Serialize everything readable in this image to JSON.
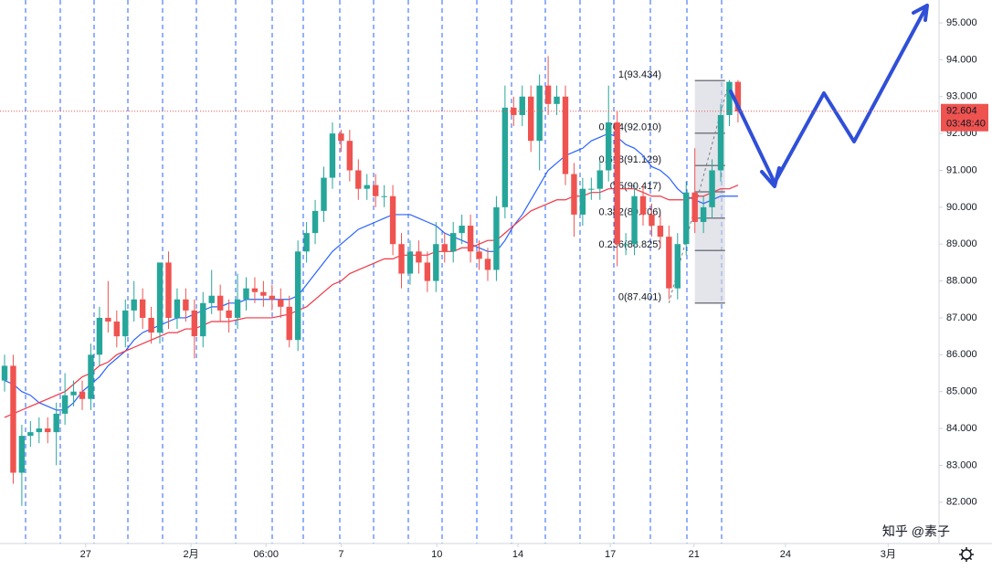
{
  "chart_data": {
    "type": "candlestick",
    "colors": {
      "up": "#26a69a",
      "down": "#ef5350",
      "ma_fast": "#2962ff",
      "ma_slow": "#f23645"
    },
    "open": [
      85.3,
      85.7,
      82.8,
      83.8,
      83.9,
      84.0,
      83.9,
      84.4,
      84.9,
      85.0,
      84.8,
      86.0,
      87.0,
      86.9,
      86.5,
      87.2,
      87.5,
      87.0,
      86.6,
      88.5,
      87.0,
      87.5,
      87.2,
      86.5,
      87.4,
      87.6,
      87.2,
      87.0,
      87.5,
      87.8,
      87.7,
      87.6,
      87.5,
      87.3,
      86.4,
      88.8,
      89.3,
      89.9,
      90.8,
      92.0,
      91.8,
      91.0,
      90.5,
      90.6,
      90.3,
      90.3,
      89.0,
      88.2,
      88.8,
      88.5,
      88.0,
      89.0,
      88.8,
      89.3,
      89.5,
      88.8,
      88.6,
      88.3,
      90.0,
      92.7,
      92.5,
      93.0,
      91.8,
      93.3,
      92.8,
      93.0,
      90.9,
      89.8,
      90.5,
      90.5,
      91.0,
      92.3,
      89.0,
      89.0,
      90.3,
      89.8,
      89.5,
      89.2,
      87.8,
      89.0,
      90.4,
      89.6,
      90.0,
      91.0,
      92.5,
      93.4
    ],
    "high": [
      86.0,
      86.0,
      84.1,
      84.2,
      84.3,
      84.3,
      84.7,
      85.5,
      85.3,
      85.3,
      86.3,
      87.3,
      88.0,
      87.2,
      87.5,
      88.0,
      87.8,
      87.3,
      88.5,
      88.8,
      87.8,
      87.8,
      87.5,
      87.7,
      88.3,
      87.9,
      87.5,
      88.2,
      88.1,
      88.1,
      88.0,
      87.9,
      87.8,
      87.6,
      89.1,
      89.6,
      90.2,
      91.1,
      92.3,
      92.1,
      92.1,
      91.3,
      90.9,
      90.9,
      90.6,
      90.6,
      89.3,
      89.1,
      89.1,
      88.8,
      89.6,
      89.3,
      89.6,
      89.8,
      89.8,
      89.1,
      88.9,
      90.3,
      93.3,
      93.0,
      93.3,
      93.3,
      93.6,
      94.1,
      93.3,
      93.3,
      91.2,
      90.8,
      90.8,
      91.3,
      93.3,
      92.6,
      89.3,
      90.6,
      90.6,
      90.1,
      89.8,
      89.5,
      89.3,
      90.7,
      91.6,
      90.3,
      91.3,
      92.8,
      93.45,
      93.45
    ],
    "low": [
      85.0,
      82.5,
      81.9,
      83.5,
      83.6,
      83.6,
      83.0,
      84.1,
      84.6,
      84.5,
      84.5,
      85.7,
      86.6,
      86.2,
      86.2,
      86.9,
      86.7,
      86.3,
      86.3,
      86.7,
      86.7,
      86.9,
      85.9,
      86.2,
      87.1,
      86.9,
      86.6,
      86.7,
      87.2,
      87.4,
      87.3,
      87.2,
      87.0,
      86.2,
      86.1,
      88.5,
      89.0,
      89.6,
      90.5,
      91.5,
      90.7,
      90.2,
      90.2,
      90.0,
      90.0,
      88.7,
      87.8,
      87.9,
      88.2,
      87.7,
      87.7,
      88.5,
      88.5,
      89.0,
      88.5,
      88.3,
      88.0,
      88.0,
      89.7,
      92.2,
      92.2,
      91.5,
      91.0,
      92.5,
      92.5,
      90.6,
      89.2,
      89.5,
      90.2,
      90.2,
      90.7,
      88.4,
      88.7,
      88.7,
      89.5,
      89.2,
      88.9,
      87.5,
      87.5,
      88.7,
      89.3,
      89.3,
      89.7,
      90.7,
      92.2,
      92.3
    ],
    "close": [
      85.7,
      82.8,
      83.8,
      83.9,
      84.0,
      83.9,
      84.4,
      84.9,
      85.0,
      84.8,
      86.0,
      87.0,
      86.9,
      86.5,
      87.2,
      87.5,
      87.0,
      86.6,
      88.5,
      87.0,
      87.5,
      87.2,
      86.5,
      87.4,
      87.6,
      87.2,
      87.0,
      87.5,
      87.8,
      87.7,
      87.6,
      87.5,
      87.3,
      86.4,
      88.8,
      89.3,
      89.9,
      90.8,
      92.0,
      91.8,
      91.0,
      90.5,
      90.6,
      90.3,
      90.3,
      89.0,
      88.2,
      88.8,
      88.5,
      88.0,
      89.0,
      88.8,
      89.3,
      89.5,
      88.8,
      88.6,
      88.3,
      90.0,
      92.7,
      92.5,
      93.0,
      91.8,
      93.3,
      92.8,
      93.0,
      90.9,
      89.8,
      90.5,
      90.5,
      91.0,
      92.3,
      89.0,
      89.0,
      90.3,
      89.8,
      89.5,
      89.2,
      87.8,
      89.0,
      90.4,
      89.6,
      90.0,
      91.0,
      92.5,
      93.4,
      92.6
    ],
    "ma_fast": [
      85.3,
      85.2,
      85.0,
      84.9,
      84.7,
      84.6,
      84.5,
      84.5,
      84.7,
      85.0,
      85.2,
      85.4,
      85.7,
      85.9,
      86.1,
      86.4,
      86.6,
      86.7,
      86.8,
      86.9,
      87.0,
      87.0,
      87.1,
      87.2,
      87.3,
      87.3,
      87.4,
      87.4,
      87.5,
      87.5,
      87.5,
      87.5,
      87.5,
      87.5,
      87.6,
      87.9,
      88.2,
      88.5,
      88.8,
      89.0,
      89.2,
      89.4,
      89.5,
      89.6,
      89.7,
      89.8,
      89.8,
      89.8,
      89.7,
      89.6,
      89.5,
      89.3,
      89.2,
      89.1,
      89.0,
      88.9,
      88.8,
      88.8,
      89.1,
      89.5,
      89.8,
      90.2,
      90.6,
      91.0,
      91.2,
      91.4,
      91.5,
      91.6,
      91.8,
      91.9,
      92.0,
      91.9,
      91.7,
      91.6,
      91.4,
      91.1,
      91.0,
      90.8,
      90.5,
      90.3,
      90.2,
      90.1,
      90.2,
      90.3,
      90.3,
      90.3
    ],
    "ma_slow": [
      84.3,
      84.4,
      84.5,
      84.6,
      84.7,
      84.8,
      84.9,
      85.0,
      85.2,
      85.4,
      85.5,
      85.7,
      85.8,
      86.0,
      86.1,
      86.2,
      86.3,
      86.4,
      86.5,
      86.6,
      86.6,
      86.7,
      86.7,
      86.8,
      86.9,
      86.9,
      86.9,
      86.95,
      87.0,
      87.0,
      87.0,
      87.0,
      87.05,
      87.1,
      87.2,
      87.3,
      87.5,
      87.7,
      87.9,
      88.0,
      88.2,
      88.3,
      88.4,
      88.5,
      88.6,
      88.6,
      88.7,
      88.7,
      88.7,
      88.7,
      88.8,
      88.8,
      88.8,
      88.9,
      88.9,
      89.0,
      89.1,
      89.1,
      89.3,
      89.5,
      89.7,
      89.9,
      90.0,
      90.1,
      90.2,
      90.2,
      90.3,
      90.3,
      90.4,
      90.4,
      90.5,
      90.5,
      90.5,
      90.5,
      90.4,
      90.3,
      90.3,
      90.2,
      90.2,
      90.2,
      90.3,
      90.3,
      90.4,
      90.5,
      90.5,
      90.6
    ],
    "xlim": [
      -0.53,
      108.3
    ],
    "xticks": [
      {
        "value": 9.4,
        "label": "27"
      },
      {
        "value": 21.6,
        "label": "2月"
      },
      {
        "value": 30.3,
        "label": "06:00"
      },
      {
        "value": 39.0,
        "label": "7"
      },
      {
        "value": 50.1,
        "label": "10"
      },
      {
        "value": 59.5,
        "label": "14"
      },
      {
        "value": 70.2,
        "label": "17"
      },
      {
        "value": 79.9,
        "label": "21"
      },
      {
        "value": 90.5,
        "label": "24"
      },
      {
        "value": 102.4,
        "label": "3月"
      }
    ],
    "ylim": [
      80.88,
      95.62
    ],
    "yticks": [
      {
        "value": 82,
        "label": "82.000"
      },
      {
        "value": 83,
        "label": "83.000"
      },
      {
        "value": 84,
        "label": "84.000"
      },
      {
        "value": 85,
        "label": "85.000"
      },
      {
        "value": 86,
        "label": "86.000"
      },
      {
        "value": 87,
        "label": "87.000"
      },
      {
        "value": 88,
        "label": "88.000"
      },
      {
        "value": 89,
        "label": "89.000"
      },
      {
        "value": 90,
        "label": "90.000"
      },
      {
        "value": 91,
        "label": "91.000"
      },
      {
        "value": 92,
        "label": "92.000"
      },
      {
        "value": 93,
        "label": "93.000"
      },
      {
        "value": 94,
        "label": "94.000"
      },
      {
        "value": 95,
        "label": "95.000"
      }
    ],
    "fib": {
      "x_start": 80,
      "x_end": 83.5,
      "anchor_low_x": 77,
      "anchor_high_x": 84,
      "levels": [
        {
          "value": 93.434,
          "label": "1(93.434)"
        },
        {
          "value": 92.01,
          "label": "0.764(92.010)"
        },
        {
          "value": 91.129,
          "label": "0.618(91.129)"
        },
        {
          "value": 90.417,
          "label": "0.5(90.417)"
        },
        {
          "value": 89.706,
          "label": "0.382(89.706)"
        },
        {
          "value": 88.825,
          "label": "0.236(88.825)"
        },
        {
          "value": 87.401,
          "label": "0(87.401)"
        }
      ]
    },
    "last_price": 92.604,
    "countdown": "03:48:40",
    "watermark": "知乎 @素子"
  }
}
